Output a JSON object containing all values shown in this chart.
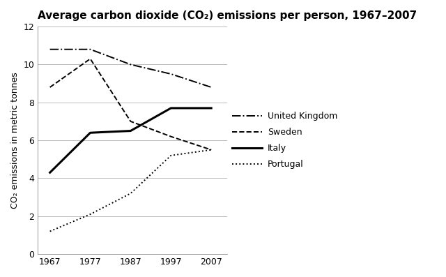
{
  "title": "Average carbon dioxide (CO₂) emissions per person, 1967–2007",
  "ylabel": "CO₂ emissions in metric tonnes",
  "years": [
    1967,
    1977,
    1987,
    1997,
    2007
  ],
  "united_kingdom": [
    10.8,
    10.8,
    10.0,
    9.5,
    8.8
  ],
  "sweden": [
    8.8,
    10.3,
    7.0,
    6.2,
    5.5
  ],
  "italy": [
    4.3,
    6.4,
    6.5,
    7.7,
    7.7
  ],
  "portugal": [
    1.2,
    2.1,
    3.2,
    5.2,
    5.5
  ],
  "ylim": [
    0,
    12
  ],
  "yticks": [
    0,
    2,
    4,
    6,
    8,
    10,
    12
  ],
  "xticks": [
    1967,
    1977,
    1987,
    1997,
    2007
  ],
  "xlim": [
    1964,
    2011
  ],
  "legend_labels": [
    "United Kingdom",
    "Sweden",
    "Italy",
    "Portugal"
  ],
  "background_color": "#ffffff",
  "line_color": "#000000",
  "grid_color": "#bbbbbb",
  "title_fontsize": 11,
  "axis_fontsize": 9,
  "legend_fontsize": 9,
  "ylabel_fontsize": 9
}
